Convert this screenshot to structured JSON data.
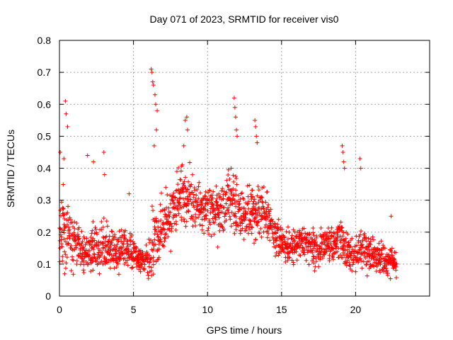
{
  "chart_data": {
    "type": "scatter",
    "title": "Day 071 of 2023, SRMTID for receiver vis0",
    "xlabel": "GPS time / hours",
    "ylabel": "SRMTID / TECUs",
    "xlim": [
      0,
      25
    ],
    "ylim": [
      0,
      0.8
    ],
    "xticks": [
      0,
      5,
      10,
      15,
      20
    ],
    "xtick_labels": [
      "0",
      "5",
      "10",
      "15",
      "20"
    ],
    "yticks": [
      0,
      0.1,
      0.2,
      0.3,
      0.4,
      0.5,
      0.6,
      0.7,
      0.8
    ],
    "ytick_labels": [
      "0",
      "0.1",
      "0.2",
      "0.3",
      "0.4",
      "0.5",
      "0.6",
      "0.7",
      "0.8"
    ],
    "grid": true,
    "marker": "+",
    "color": "#ff0000",
    "sample_interval_hours": 0.05,
    "time_range_hours": [
      0,
      22.8
    ],
    "envelope": {
      "x": [
        0,
        0.3,
        0.5,
        1,
        1.5,
        2,
        2.5,
        3,
        3.5,
        4,
        4.5,
        5,
        5.5,
        6,
        6.3,
        6.8,
        7.5,
        8,
        8.5,
        9,
        9.5,
        10,
        10.5,
        11,
        11.5,
        12,
        12.5,
        13,
        13.5,
        14,
        14.5,
        15,
        15.5,
        16,
        16.5,
        17,
        17.5,
        18,
        18.5,
        19,
        19.5,
        20,
        20.5,
        21,
        21.5,
        22,
        22.5,
        22.8
      ],
      "median": [
        0.17,
        0.22,
        0.2,
        0.17,
        0.15,
        0.14,
        0.15,
        0.16,
        0.14,
        0.14,
        0.15,
        0.13,
        0.11,
        0.11,
        0.16,
        0.2,
        0.25,
        0.3,
        0.31,
        0.3,
        0.28,
        0.27,
        0.26,
        0.28,
        0.3,
        0.29,
        0.24,
        0.26,
        0.27,
        0.25,
        0.2,
        0.16,
        0.15,
        0.16,
        0.17,
        0.16,
        0.15,
        0.17,
        0.16,
        0.18,
        0.14,
        0.13,
        0.15,
        0.14,
        0.12,
        0.11,
        0.11,
        0.1
      ],
      "spread": [
        0.08,
        0.13,
        0.1,
        0.07,
        0.06,
        0.06,
        0.07,
        0.07,
        0.06,
        0.05,
        0.05,
        0.04,
        0.03,
        0.04,
        0.1,
        0.08,
        0.08,
        0.08,
        0.08,
        0.07,
        0.07,
        0.07,
        0.07,
        0.08,
        0.09,
        0.08,
        0.07,
        0.07,
        0.08,
        0.07,
        0.06,
        0.05,
        0.05,
        0.05,
        0.05,
        0.05,
        0.05,
        0.05,
        0.05,
        0.06,
        0.05,
        0.05,
        0.05,
        0.05,
        0.04,
        0.04,
        0.04,
        0.04
      ]
    },
    "spikes": [
      {
        "x": 0.05,
        "y": 0.45
      },
      {
        "x": 0.3,
        "y": 0.43
      },
      {
        "x": 0.4,
        "y": 0.61
      },
      {
        "x": 0.45,
        "y": 0.57
      },
      {
        "x": 0.55,
        "y": 0.53
      },
      {
        "x": 1.9,
        "y": 0.44
      },
      {
        "x": 2.3,
        "y": 0.42
      },
      {
        "x": 3.0,
        "y": 0.45
      },
      {
        "x": 3.05,
        "y": 0.38
      },
      {
        "x": 4.7,
        "y": 0.32
      },
      {
        "x": 6.2,
        "y": 0.71
      },
      {
        "x": 6.25,
        "y": 0.7
      },
      {
        "x": 6.3,
        "y": 0.67
      },
      {
        "x": 6.35,
        "y": 0.66
      },
      {
        "x": 6.45,
        "y": 0.63
      },
      {
        "x": 6.5,
        "y": 0.6
      },
      {
        "x": 6.6,
        "y": 0.58
      },
      {
        "x": 6.55,
        "y": 0.52
      },
      {
        "x": 6.4,
        "y": 0.47
      },
      {
        "x": 8.5,
        "y": 0.55
      },
      {
        "x": 8.6,
        "y": 0.56
      },
      {
        "x": 8.65,
        "y": 0.52
      },
      {
        "x": 8.4,
        "y": 0.47
      },
      {
        "x": 11.8,
        "y": 0.62
      },
      {
        "x": 11.85,
        "y": 0.59
      },
      {
        "x": 11.9,
        "y": 0.56
      },
      {
        "x": 11.95,
        "y": 0.52
      },
      {
        "x": 12.0,
        "y": 0.5
      },
      {
        "x": 13.2,
        "y": 0.55
      },
      {
        "x": 13.25,
        "y": 0.53
      },
      {
        "x": 13.3,
        "y": 0.5
      },
      {
        "x": 13.35,
        "y": 0.48
      },
      {
        "x": 19.1,
        "y": 0.47
      },
      {
        "x": 19.15,
        "y": 0.45
      },
      {
        "x": 19.2,
        "y": 0.42
      },
      {
        "x": 19.25,
        "y": 0.4
      },
      {
        "x": 20.3,
        "y": 0.43
      },
      {
        "x": 20.35,
        "y": 0.4
      },
      {
        "x": 22.4,
        "y": 0.25
      }
    ]
  }
}
